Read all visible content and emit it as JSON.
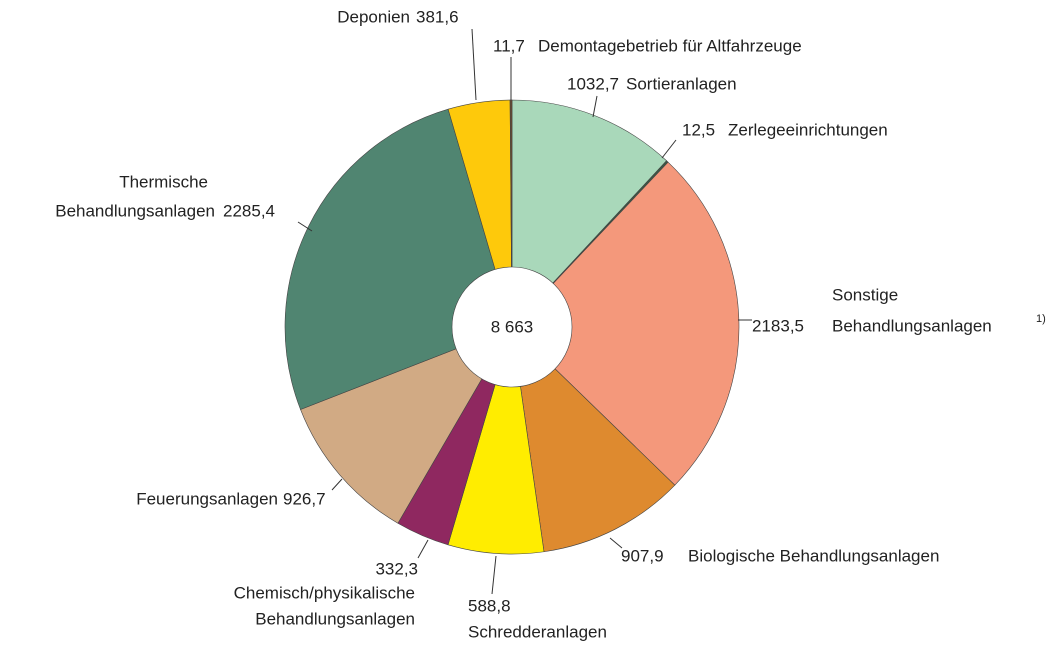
{
  "chart_data": {
    "type": "donut",
    "categories": [
      [
        "Sortieranlagen"
      ],
      [
        "Zerlegeeinrichtungen"
      ],
      [
        "Sonstige",
        "Behandlungsanlagen"
      ],
      [
        "Biologische Behandlungsanlagen"
      ],
      [
        "Schredderanlagen"
      ],
      [
        "Chemisch/physikalische",
        "Behandlungsanlagen"
      ],
      [
        "Feuerungsanlagen"
      ],
      [
        "Thermische",
        "Behandlungsanlagen"
      ],
      [
        "Deponien"
      ],
      [
        "Demontagebetrieb für Altfahrzeuge"
      ]
    ],
    "values": [
      1032.7,
      12.5,
      2183.5,
      907.9,
      588.8,
      332.3,
      926.7,
      2285.4,
      381.6,
      11.7
    ],
    "value_labels": [
      "1032,7",
      "12,5",
      "2183,5",
      "907,9",
      "588,8",
      "332,3",
      "926,7",
      "2285,4",
      "381,6",
      "11,7"
    ],
    "colors": [
      "#a9d8ba",
      "#3b5a44",
      "#f4987b",
      "#de8a2f",
      "#ffed00",
      "#8f2860",
      "#d1aa84",
      "#508571",
      "#fec90b",
      "#6b4a2e"
    ],
    "center_label": "8 663",
    "footnote": "1)"
  }
}
